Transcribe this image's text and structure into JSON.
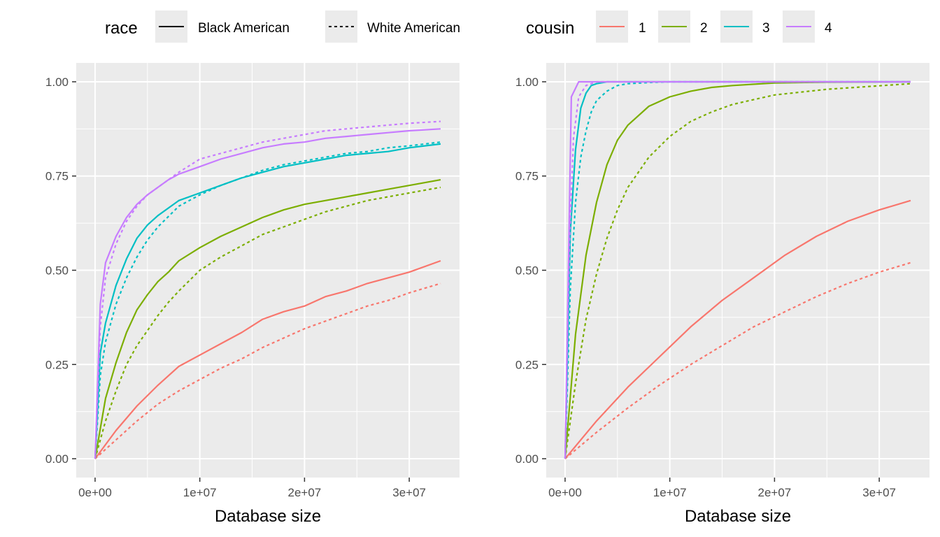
{
  "legend": {
    "race": {
      "title": "race",
      "entries": [
        {
          "label": "Black American",
          "linetype": "solid"
        },
        {
          "label": "White American",
          "linetype": "dashed"
        }
      ]
    },
    "cousin": {
      "title": "cousin",
      "entries": [
        {
          "label": "1",
          "color": "#F8766D"
        },
        {
          "label": "2",
          "color": "#7CAE00"
        },
        {
          "label": "3",
          "color": "#00BFC4"
        },
        {
          "label": "4",
          "color": "#C77CFF"
        }
      ]
    }
  },
  "colors": {
    "panel_bg": "#EBEBEB",
    "grid": "#FFFFFF",
    "cousin_1": "#F8766D",
    "cousin_2": "#7CAE00",
    "cousin_3": "#00BFC4",
    "cousin_4": "#C77CFF"
  },
  "chart_data": [
    {
      "type": "line",
      "panel": "left",
      "title": "",
      "xlabel": "Database size",
      "ylabel": "",
      "xlim": [
        -1800000,
        34800000
      ],
      "ylim": [
        -0.05,
        1.05
      ],
      "xticks": [
        0,
        10000000,
        20000000,
        30000000
      ],
      "xtick_labels": [
        "0e+00",
        "1e+07",
        "2e+07",
        "3e+07"
      ],
      "yticks": [
        0,
        0.25,
        0.5,
        0.75,
        1.0
      ],
      "ytick_labels": [
        "0.00",
        "0.25",
        "0.50",
        "0.75",
        "1.00"
      ],
      "series": [
        {
          "cousin": "1",
          "race": "Black American",
          "x": [
            0,
            2000000,
            4000000,
            6000000,
            8000000,
            10000000,
            12000000,
            14000000,
            16000000,
            18000000,
            20000000,
            22000000,
            24000000,
            26000000,
            28000000,
            30000000,
            33000000
          ],
          "y": [
            0,
            0.075,
            0.14,
            0.195,
            0.245,
            0.275,
            0.305,
            0.335,
            0.37,
            0.39,
            0.405,
            0.43,
            0.445,
            0.465,
            0.48,
            0.495,
            0.525
          ]
        },
        {
          "cousin": "1",
          "race": "White American",
          "x": [
            0,
            2000000,
            4000000,
            6000000,
            8000000,
            10000000,
            12000000,
            14000000,
            16000000,
            18000000,
            20000000,
            22000000,
            24000000,
            26000000,
            28000000,
            30000000,
            33000000
          ],
          "y": [
            0,
            0.05,
            0.1,
            0.145,
            0.18,
            0.21,
            0.24,
            0.265,
            0.295,
            0.32,
            0.345,
            0.365,
            0.385,
            0.405,
            0.42,
            0.44,
            0.465
          ]
        },
        {
          "cousin": "2",
          "race": "Black American",
          "x": [
            0,
            1000000,
            2000000,
            3000000,
            4000000,
            5000000,
            6000000,
            7000000,
            8000000,
            10000000,
            12000000,
            14000000,
            16000000,
            18000000,
            20000000,
            22000000,
            24000000,
            26000000,
            28000000,
            30000000,
            33000000
          ],
          "y": [
            0,
            0.16,
            0.255,
            0.335,
            0.395,
            0.435,
            0.47,
            0.495,
            0.525,
            0.56,
            0.59,
            0.615,
            0.64,
            0.66,
            0.675,
            0.685,
            0.695,
            0.705,
            0.715,
            0.725,
            0.74
          ]
        },
        {
          "cousin": "2",
          "race": "White American",
          "x": [
            0,
            1000000,
            2000000,
            3000000,
            4000000,
            5000000,
            6000000,
            7000000,
            8000000,
            10000000,
            12000000,
            14000000,
            16000000,
            18000000,
            20000000,
            22000000,
            24000000,
            26000000,
            28000000,
            30000000,
            33000000
          ],
          "y": [
            0,
            0.1,
            0.18,
            0.25,
            0.3,
            0.34,
            0.38,
            0.415,
            0.445,
            0.5,
            0.535,
            0.565,
            0.595,
            0.615,
            0.635,
            0.655,
            0.67,
            0.685,
            0.695,
            0.705,
            0.72
          ]
        },
        {
          "cousin": "3",
          "race": "Black American",
          "x": [
            0,
            500000,
            1000000,
            2000000,
            3000000,
            4000000,
            5000000,
            6000000,
            8000000,
            10000000,
            12000000,
            14000000,
            16000000,
            18000000,
            20000000,
            22000000,
            24000000,
            26000000,
            28000000,
            30000000,
            33000000
          ],
          "y": [
            0,
            0.28,
            0.36,
            0.46,
            0.53,
            0.585,
            0.62,
            0.645,
            0.685,
            0.705,
            0.725,
            0.745,
            0.76,
            0.775,
            0.785,
            0.795,
            0.805,
            0.81,
            0.815,
            0.825,
            0.835
          ]
        },
        {
          "cousin": "3",
          "race": "White American",
          "x": [
            0,
            500000,
            1000000,
            2000000,
            3000000,
            4000000,
            5000000,
            6000000,
            8000000,
            10000000,
            12000000,
            14000000,
            16000000,
            18000000,
            20000000,
            22000000,
            24000000,
            26000000,
            28000000,
            30000000,
            33000000
          ],
          "y": [
            0,
            0.22,
            0.31,
            0.41,
            0.48,
            0.535,
            0.58,
            0.615,
            0.67,
            0.7,
            0.725,
            0.745,
            0.765,
            0.78,
            0.79,
            0.8,
            0.81,
            0.815,
            0.825,
            0.83,
            0.84
          ]
        },
        {
          "cousin": "4",
          "race": "Black American",
          "x": [
            0,
            500000,
            1000000,
            2000000,
            3000000,
            4000000,
            5000000,
            6000000,
            7000000,
            8000000,
            10000000,
            12000000,
            14000000,
            16000000,
            18000000,
            20000000,
            22000000,
            24000000,
            26000000,
            28000000,
            30000000,
            33000000
          ],
          "y": [
            0,
            0.41,
            0.52,
            0.59,
            0.64,
            0.675,
            0.7,
            0.72,
            0.74,
            0.755,
            0.775,
            0.795,
            0.81,
            0.825,
            0.835,
            0.84,
            0.85,
            0.855,
            0.86,
            0.865,
            0.87,
            0.875
          ]
        },
        {
          "cousin": "4",
          "race": "White American",
          "x": [
            0,
            500000,
            1000000,
            2000000,
            3000000,
            4000000,
            5000000,
            6000000,
            7000000,
            8000000,
            10000000,
            12000000,
            14000000,
            16000000,
            18000000,
            20000000,
            22000000,
            24000000,
            26000000,
            28000000,
            30000000,
            33000000
          ],
          "y": [
            0,
            0.35,
            0.48,
            0.57,
            0.63,
            0.67,
            0.7,
            0.72,
            0.74,
            0.76,
            0.795,
            0.81,
            0.825,
            0.84,
            0.85,
            0.86,
            0.87,
            0.875,
            0.88,
            0.885,
            0.89,
            0.895
          ]
        }
      ]
    },
    {
      "type": "line",
      "panel": "right",
      "title": "",
      "xlabel": "Database size",
      "ylabel": "",
      "xlim": [
        -1800000,
        34800000
      ],
      "ylim": [
        -0.05,
        1.05
      ],
      "xticks": [
        0,
        10000000,
        20000000,
        30000000
      ],
      "xtick_labels": [
        "0e+00",
        "1e+07",
        "2e+07",
        "3e+07"
      ],
      "yticks": [
        0,
        0.25,
        0.5,
        0.75,
        1.0
      ],
      "ytick_labels": [
        "0.00",
        "0.25",
        "0.50",
        "0.75",
        "1.00"
      ],
      "series": [
        {
          "cousin": "1",
          "race": "Black American",
          "x": [
            0,
            3000000,
            6000000,
            9000000,
            12000000,
            15000000,
            18000000,
            21000000,
            24000000,
            27000000,
            30000000,
            33000000
          ],
          "y": [
            0,
            0.1,
            0.19,
            0.27,
            0.35,
            0.42,
            0.48,
            0.54,
            0.59,
            0.63,
            0.66,
            0.685
          ]
        },
        {
          "cousin": "1",
          "race": "White American",
          "x": [
            0,
            3000000,
            6000000,
            9000000,
            12000000,
            15000000,
            18000000,
            21000000,
            24000000,
            27000000,
            30000000,
            33000000
          ],
          "y": [
            0,
            0.07,
            0.135,
            0.195,
            0.25,
            0.3,
            0.35,
            0.39,
            0.43,
            0.465,
            0.495,
            0.52
          ]
        },
        {
          "cousin": "2",
          "race": "Black American",
          "x": [
            0,
            1000000,
            2000000,
            3000000,
            4000000,
            5000000,
            6000000,
            8000000,
            10000000,
            12000000,
            14000000,
            16000000,
            20000000,
            25000000,
            33000000
          ],
          "y": [
            0,
            0.33,
            0.54,
            0.68,
            0.78,
            0.845,
            0.885,
            0.935,
            0.96,
            0.975,
            0.985,
            0.99,
            0.997,
            0.999,
            1.0
          ]
        },
        {
          "cousin": "2",
          "race": "White American",
          "x": [
            0,
            1000000,
            2000000,
            3000000,
            4000000,
            5000000,
            6000000,
            8000000,
            10000000,
            12000000,
            14000000,
            16000000,
            20000000,
            25000000,
            33000000
          ],
          "y": [
            0,
            0.2,
            0.37,
            0.49,
            0.585,
            0.66,
            0.72,
            0.8,
            0.855,
            0.895,
            0.92,
            0.94,
            0.965,
            0.98,
            0.995
          ]
        },
        {
          "cousin": "3",
          "race": "Black American",
          "x": [
            0,
            500000,
            1000000,
            1500000,
            2000000,
            2500000,
            3000000,
            4000000,
            6000000,
            10000000,
            33000000
          ],
          "y": [
            0,
            0.6,
            0.82,
            0.93,
            0.97,
            0.99,
            0.995,
            1.0,
            1.0,
            1.0,
            1.0
          ]
        },
        {
          "cousin": "3",
          "race": "White American",
          "x": [
            0,
            500000,
            1000000,
            1500000,
            2000000,
            2500000,
            3000000,
            4000000,
            5000000,
            6000000,
            8000000,
            10000000,
            33000000
          ],
          "y": [
            0,
            0.45,
            0.68,
            0.8,
            0.87,
            0.92,
            0.95,
            0.975,
            0.99,
            0.995,
            0.998,
            1.0,
            1.0
          ]
        },
        {
          "cousin": "4",
          "race": "Black American",
          "x": [
            0,
            600000,
            1300000,
            2000000,
            33000000
          ],
          "y": [
            0,
            0.96,
            1.0,
            1.0,
            1.0
          ]
        },
        {
          "cousin": "4",
          "race": "White American",
          "x": [
            0,
            400000,
            800000,
            1300000,
            2000000,
            3000000,
            33000000
          ],
          "y": [
            0,
            0.55,
            0.85,
            0.96,
            0.99,
            1.0,
            1.0
          ]
        }
      ]
    }
  ]
}
